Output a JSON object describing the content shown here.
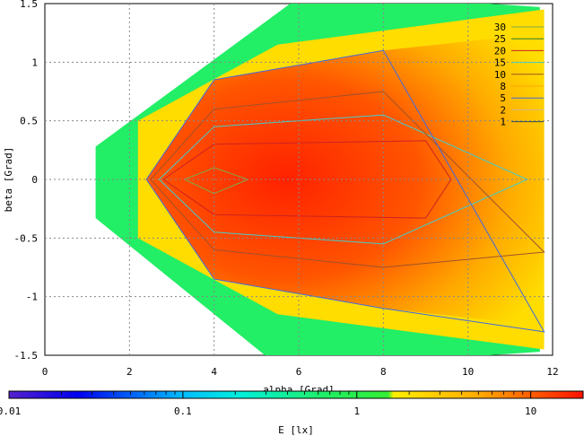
{
  "chart_data": {
    "type": "heatmap",
    "title": "",
    "xlabel": "alpha [Grad]",
    "ylabel": "beta [Grad]",
    "xlim": [
      0,
      12
    ],
    "ylim": [
      1.5,
      -1.5
    ],
    "x_ticks": [
      "0",
      "2",
      "4",
      "6",
      "8",
      "10",
      "12"
    ],
    "y_ticks": [
      "-1.5",
      "-1",
      "-0.5",
      "0",
      "0.5",
      "1",
      "1.5"
    ],
    "grid": true,
    "colorbar": {
      "label": "E [lx]",
      "scale": "log",
      "range": [
        0.01,
        20
      ],
      "ticks": [
        "0.01",
        "0.1",
        "1",
        "10"
      ]
    },
    "legend": {
      "placement": "top-right",
      "entries": [
        {
          "label": "30",
          "color": "#7fa84a"
        },
        {
          "label": "25",
          "color": "#2e7d32"
        },
        {
          "label": "20",
          "color": "#cc2222"
        },
        {
          "label": "15",
          "color": "#44cccc"
        },
        {
          "label": "10",
          "color": "#a0522d"
        },
        {
          "label": "8",
          "color": "#ffa500"
        },
        {
          "label": "5",
          "color": "#4169e1"
        },
        {
          "label": "2",
          "color": "#d2b48c"
        },
        {
          "label": "1",
          "color": "#2f4f4f"
        }
      ]
    },
    "contours": [
      {
        "level": 30,
        "alpha": [
          3.3,
          4.0,
          4.8,
          4.0,
          3.3
        ],
        "beta": [
          0.0,
          -0.12,
          0.0,
          0.1,
          0.0
        ]
      },
      {
        "level": 20,
        "alpha": [
          2.8,
          4.0,
          9.0,
          9.6,
          9.0,
          4.0,
          2.8
        ],
        "beta": [
          0.0,
          -0.3,
          -0.33,
          0.0,
          0.33,
          0.3,
          0.0
        ]
      },
      {
        "level": 15,
        "alpha": [
          2.7,
          4.0,
          8.0,
          11.4,
          8.0,
          4.0,
          2.7
        ],
        "beta": [
          0.0,
          -0.45,
          -0.55,
          0.0,
          0.55,
          0.45,
          0.0
        ]
      },
      {
        "level": 10,
        "alpha": [
          2.5,
          4.0,
          8.0,
          11.8,
          8.0,
          4.0,
          2.5
        ],
        "beta": [
          0.0,
          -0.6,
          -0.75,
          -0.62,
          0.75,
          0.6,
          0.0
        ]
      },
      {
        "level": 5,
        "alpha": [
          2.4,
          4.0,
          8.0,
          11.8,
          8.0,
          4.0,
          2.4
        ],
        "beta": [
          0.0,
          -0.85,
          -1.1,
          -1.3,
          1.1,
          0.85,
          0.0
        ]
      }
    ],
    "data_region": {
      "alpha": [
        1.2,
        5.2,
        10.5,
        11.7,
        11.7,
        10.5,
        5.8,
        1.2
      ],
      "beta": [
        -0.33,
        -1.5,
        -1.5,
        -1.47,
        1.47,
        1.5,
        1.5,
        0.28
      ]
    }
  }
}
